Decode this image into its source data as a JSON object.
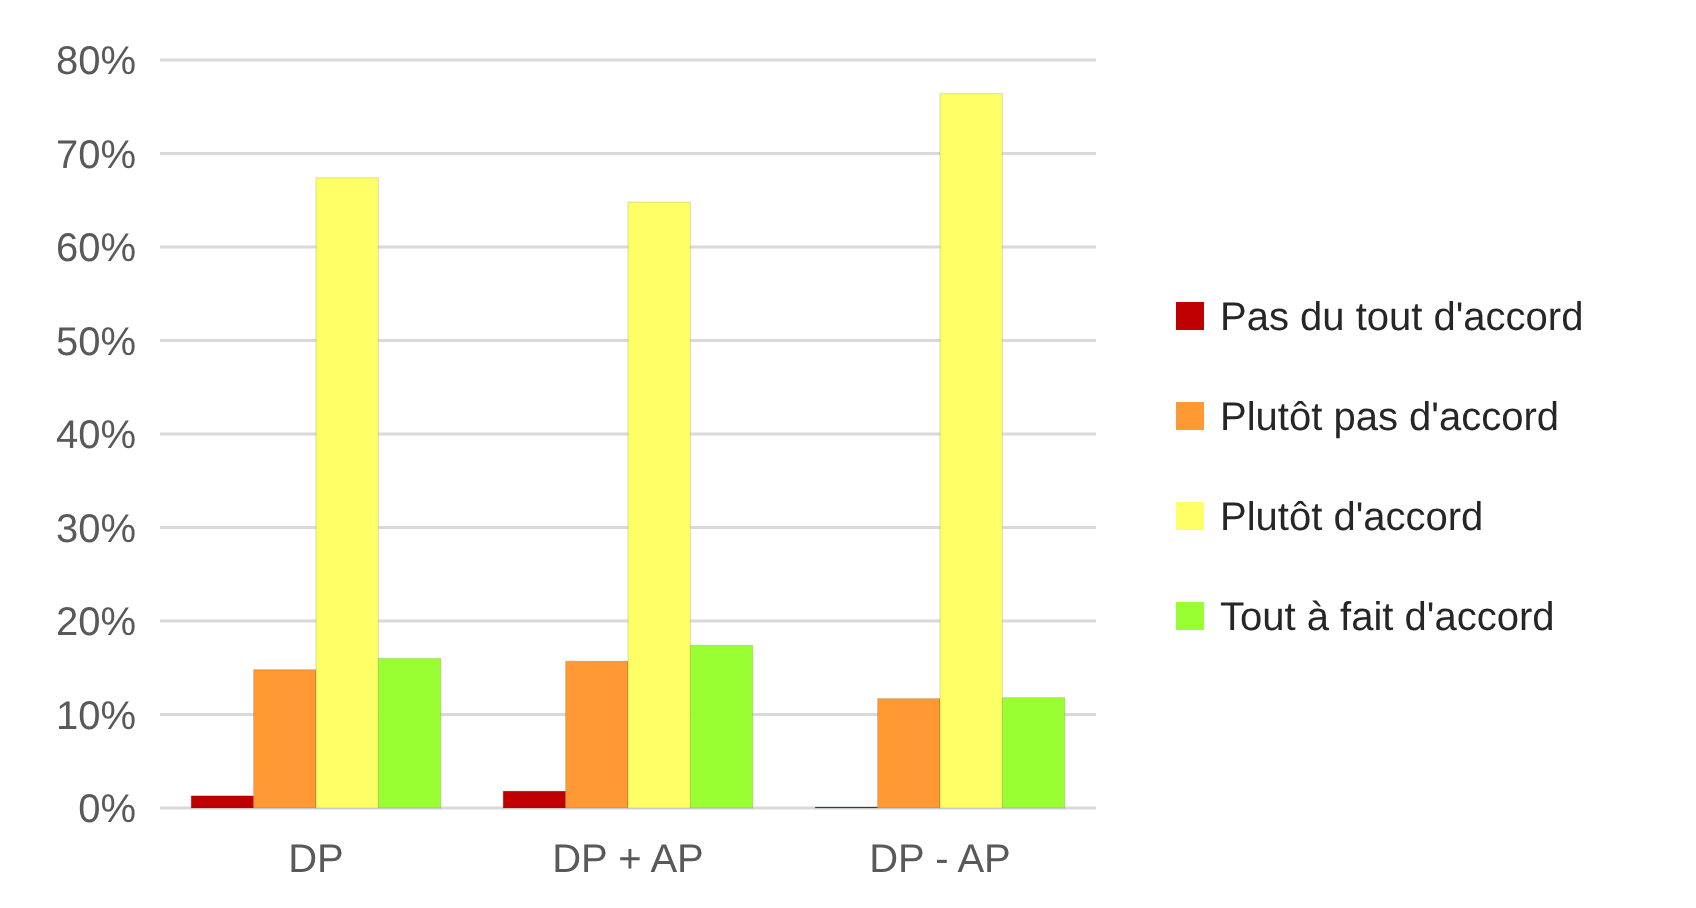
{
  "chart_data": {
    "type": "bar",
    "categories": [
      "DP",
      "DP + AP",
      "DP - AP"
    ],
    "series": [
      {
        "name": "Pas du tout d'accord",
        "color": "#c00000",
        "values": [
          1.3,
          1.8,
          0.1
        ]
      },
      {
        "name": "Plutôt pas d'accord",
        "color": "#ff9933",
        "values": [
          14.8,
          15.7,
          11.7
        ]
      },
      {
        "name": "Plutôt d'accord",
        "color": "#ffff66",
        "values": [
          67.4,
          64.8,
          76.4
        ]
      },
      {
        "name": "Tout à fait d'accord",
        "color": "#99ff33",
        "values": [
          16,
          17.4,
          11.8
        ]
      }
    ],
    "ylim": [
      0,
      80
    ],
    "yticks": [
      {
        "value": 0,
        "label": "0%"
      },
      {
        "value": 10,
        "label": "10%"
      },
      {
        "value": 20,
        "label": "20%"
      },
      {
        "value": 30,
        "label": "30%"
      },
      {
        "value": 40,
        "label": "40%"
      },
      {
        "value": 50,
        "label": "50%"
      },
      {
        "value": 60,
        "label": "60%"
      },
      {
        "value": 70,
        "label": "70%"
      },
      {
        "value": 80,
        "label": "80%"
      }
    ],
    "grid": "y",
    "legend": "right"
  }
}
